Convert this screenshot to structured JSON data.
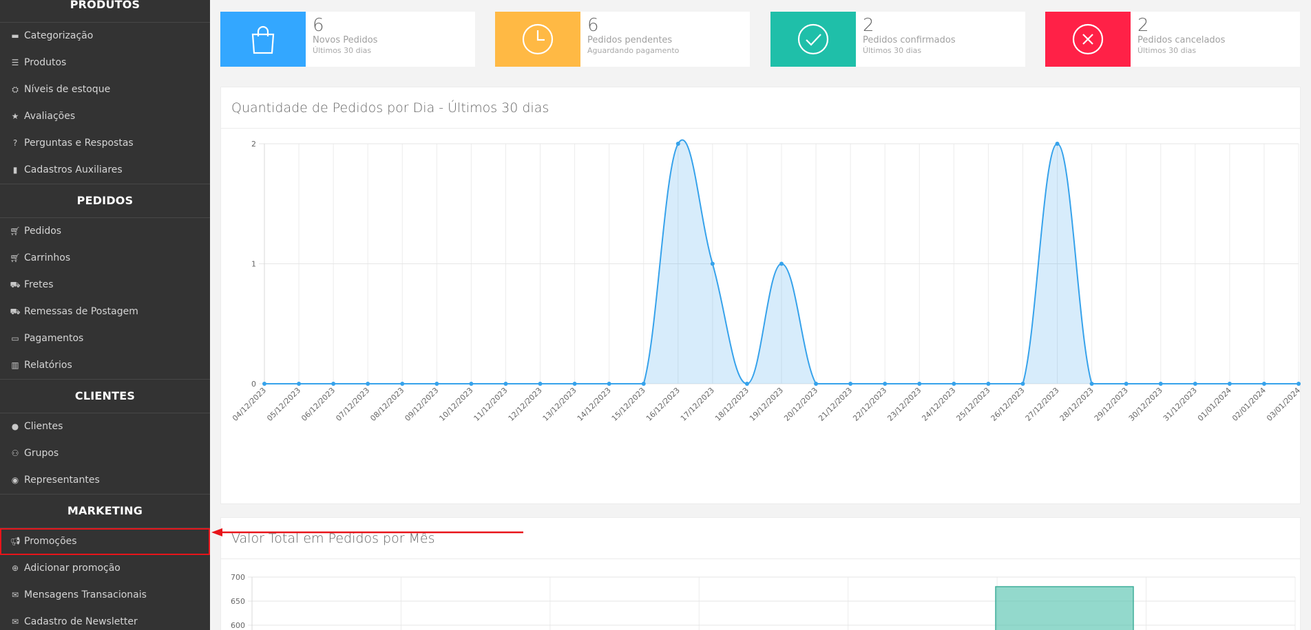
{
  "sidebar": {
    "sections": [
      {
        "title": "PRODUTOS",
        "items": [
          {
            "label": "Categorização",
            "icon": "folder-icon"
          },
          {
            "label": "Produtos",
            "icon": "list-icon"
          },
          {
            "label": "Níveis de estoque",
            "icon": "cubes-icon"
          },
          {
            "label": "Avaliações",
            "icon": "star-icon"
          },
          {
            "label": "Perguntas e Respostas",
            "icon": "question-circle-icon"
          },
          {
            "label": "Cadastros Auxiliares",
            "icon": "file-icon"
          }
        ]
      },
      {
        "title": "PEDIDOS",
        "items": [
          {
            "label": "Pedidos",
            "icon": "cart-icon"
          },
          {
            "label": "Carrinhos",
            "icon": "cart-icon"
          },
          {
            "label": "Fretes",
            "icon": "truck-icon"
          },
          {
            "label": "Remessas de Postagem",
            "icon": "truck-icon"
          },
          {
            "label": "Pagamentos",
            "icon": "credit-card-icon"
          },
          {
            "label": "Relatórios",
            "icon": "bar-chart-icon"
          }
        ]
      },
      {
        "title": "CLIENTES",
        "items": [
          {
            "label": "Clientes",
            "icon": "user-icon"
          },
          {
            "label": "Grupos",
            "icon": "users-icon"
          },
          {
            "label": "Representantes",
            "icon": "user-circle-icon"
          }
        ]
      },
      {
        "title": "MARKETING",
        "items": [
          {
            "label": "Promoções",
            "icon": "bullhorn-icon",
            "highlighted": true
          },
          {
            "label": "Adicionar promoção",
            "icon": "plus-circle-icon"
          },
          {
            "label": "Mensagens Transacionais",
            "icon": "envelope-icon"
          },
          {
            "label": "Cadastro de Newsletter",
            "icon": "envelope-icon"
          }
        ]
      }
    ]
  },
  "cards": [
    {
      "number": "6",
      "label": "Novos Pedidos",
      "sub": "Últimos 30 dias",
      "color": "#33a7ff",
      "icon": "shopping-bag-icon"
    },
    {
      "number": "6",
      "label": "Pedidos pendentes",
      "sub": "Aguardando pagamento",
      "color": "#ffb944",
      "icon": "clock-icon"
    },
    {
      "number": "2",
      "label": "Pedidos confirmados",
      "sub": "Últimos 30 dias",
      "color": "#1fbfa9",
      "icon": "check-circle-icon"
    },
    {
      "number": "2",
      "label": "Pedidos cancelados",
      "sub": "Últimos 30 dias",
      "color": "#ff2147",
      "icon": "x-circle-icon"
    }
  ],
  "chart1_title": "Quantidade de Pedidos por Dia - Últimos 30 dias",
  "chart2_title": "Valor Total em Pedidos por Mês",
  "highlight_color": "#e8141a",
  "chart_data": [
    {
      "type": "area",
      "title": "Quantidade de Pedidos por Dia - Últimos 30 dias",
      "x": [
        "04/12/2023",
        "05/12/2023",
        "06/12/2023",
        "07/12/2023",
        "08/12/2023",
        "09/12/2023",
        "10/12/2023",
        "11/12/2023",
        "12/12/2023",
        "13/12/2023",
        "14/12/2023",
        "15/12/2023",
        "16/12/2023",
        "17/12/2023",
        "18/12/2023",
        "19/12/2023",
        "20/12/2023",
        "21/12/2023",
        "22/12/2023",
        "23/12/2023",
        "24/12/2023",
        "25/12/2023",
        "26/12/2023",
        "27/12/2023",
        "28/12/2023",
        "29/12/2023",
        "30/12/2023",
        "31/12/2023",
        "01/01/2024",
        "02/01/2024",
        "03/01/2024"
      ],
      "values": [
        0,
        0,
        0,
        0,
        0,
        0,
        0,
        0,
        0,
        0,
        0,
        0,
        2,
        1,
        0,
        1,
        0,
        0,
        0,
        0,
        0,
        0,
        0,
        2,
        0,
        0,
        0,
        0,
        0,
        0,
        0
      ],
      "yticks": [
        0,
        1,
        2
      ],
      "ylim": [
        0,
        2
      ],
      "color": "#36a2eb",
      "grid": true
    },
    {
      "type": "bar",
      "title": "Valor Total em Pedidos por Mês",
      "yticks": [
        600,
        650,
        700
      ],
      "bar_value": 680,
      "color": "#4bc0c0",
      "grid": true
    }
  ]
}
